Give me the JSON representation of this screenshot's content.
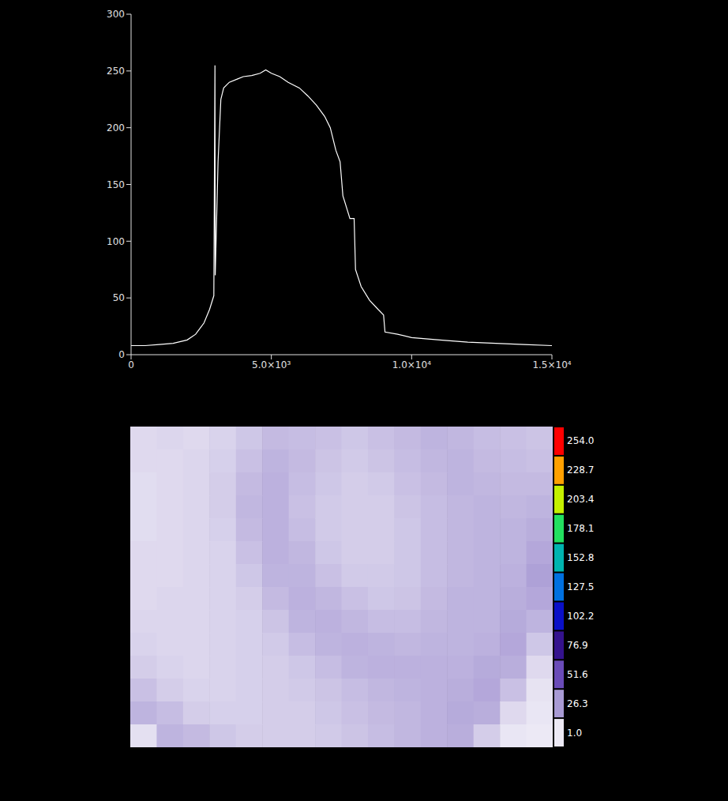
{
  "chart_data": [
    {
      "type": "line",
      "x": [
        0,
        500,
        1000,
        1500,
        2000,
        2300,
        2600,
        2800,
        2950,
        2990,
        3000,
        3100,
        3200,
        3300,
        3500,
        3800,
        4000,
        4300,
        4600,
        4800,
        5000,
        5300,
        5600,
        6000,
        6300,
        6600,
        6900,
        7100,
        7300,
        7450,
        7550,
        7700,
        7800,
        7950,
        8000,
        8200,
        8500,
        8800,
        9000,
        9050,
        9500,
        10000,
        11000,
        12000,
        13000,
        14000,
        15000
      ],
      "values": [
        8,
        8,
        9,
        10,
        13,
        18,
        28,
        40,
        52,
        255,
        70,
        170,
        225,
        235,
        240,
        243,
        245,
        246,
        248,
        251,
        248,
        245,
        240,
        235,
        228,
        220,
        210,
        200,
        180,
        170,
        140,
        128,
        120,
        120,
        75,
        60,
        48,
        40,
        35,
        20,
        18,
        15,
        13,
        11,
        10,
        9,
        8
      ],
      "color": "#ffffff",
      "xlim": [
        0,
        15000
      ],
      "xticks": [
        0,
        {
          "value": 5000,
          "label": "5.0×10³"
        },
        {
          "value": 10000,
          "label": "1.0×10⁴"
        },
        {
          "value": 15000,
          "label": "1.5×10⁴"
        }
      ],
      "ylim": [
        0,
        300
      ],
      "yticks": [
        0,
        50,
        100,
        150,
        200,
        250,
        300
      ]
    },
    {
      "type": "heatmap",
      "tick_labels": false,
      "cells": [
        [
          6,
          7,
          6,
          8,
          12,
          16,
          15,
          14,
          12,
          14,
          16,
          18,
          17,
          15,
          14,
          13
        ],
        [
          6,
          6,
          7,
          9,
          14,
          18,
          16,
          13,
          11,
          13,
          15,
          17,
          18,
          16,
          15,
          14
        ],
        [
          5,
          6,
          7,
          10,
          16,
          19,
          15,
          12,
          10,
          11,
          14,
          16,
          18,
          17,
          16,
          16
        ],
        [
          5,
          6,
          7,
          10,
          17,
          19,
          14,
          11,
          10,
          10,
          13,
          15,
          17,
          18,
          17,
          18
        ],
        [
          5,
          6,
          7,
          9,
          16,
          19,
          15,
          11,
          10,
          10,
          12,
          15,
          17,
          18,
          18,
          20
        ],
        [
          6,
          6,
          7,
          8,
          14,
          19,
          17,
          12,
          10,
          10,
          12,
          15,
          17,
          18,
          18,
          22
        ],
        [
          6,
          6,
          7,
          8,
          12,
          18,
          18,
          14,
          11,
          11,
          12,
          15,
          17,
          18,
          19,
          24
        ],
        [
          6,
          7,
          7,
          8,
          10,
          16,
          19,
          17,
          14,
          12,
          13,
          16,
          18,
          18,
          20,
          22
        ],
        [
          7,
          7,
          7,
          8,
          9,
          13,
          18,
          19,
          17,
          15,
          15,
          17,
          18,
          18,
          21,
          18
        ],
        [
          8,
          7,
          7,
          8,
          9,
          11,
          15,
          18,
          19,
          18,
          17,
          18,
          18,
          19,
          22,
          12
        ],
        [
          10,
          8,
          7,
          8,
          9,
          10,
          12,
          15,
          18,
          19,
          19,
          19,
          19,
          21,
          20,
          6
        ],
        [
          14,
          10,
          8,
          8,
          9,
          10,
          11,
          13,
          15,
          17,
          18,
          19,
          20,
          22,
          14,
          3
        ],
        [
          18,
          15,
          10,
          9,
          9,
          10,
          10,
          12,
          14,
          16,
          17,
          19,
          21,
          20,
          6,
          2
        ],
        [
          4,
          18,
          16,
          12,
          10,
          10,
          10,
          11,
          13,
          15,
          17,
          19,
          20,
          10,
          2,
          1
        ]
      ],
      "colorbar": {
        "range": [
          1,
          254
        ],
        "ticks": [
          {
            "value": 1,
            "label": "1.0"
          },
          {
            "value": 26.3,
            "label": "26.3"
          },
          {
            "value": 51.6,
            "label": "51.6"
          },
          {
            "value": 76.9,
            "label": "76.9"
          },
          {
            "value": 102.2,
            "label": "102.2"
          },
          {
            "value": 127.5,
            "label": "127.5"
          },
          {
            "value": 152.8,
            "label": "152.8"
          },
          {
            "value": 178.1,
            "label": "178.1"
          },
          {
            "value": 203.4,
            "label": "203.4"
          },
          {
            "value": 228.7,
            "label": "228.7"
          },
          {
            "value": 254,
            "label": "254.0"
          }
        ],
        "colors": [
          "#ece9f5",
          "#a89ad4",
          "#6a4bb8",
          "#34128e",
          "#0a10c8",
          "#0070e0",
          "#00b4b0",
          "#22e060",
          "#c4f000",
          "#ffa000",
          "#ff0000"
        ]
      }
    }
  ]
}
